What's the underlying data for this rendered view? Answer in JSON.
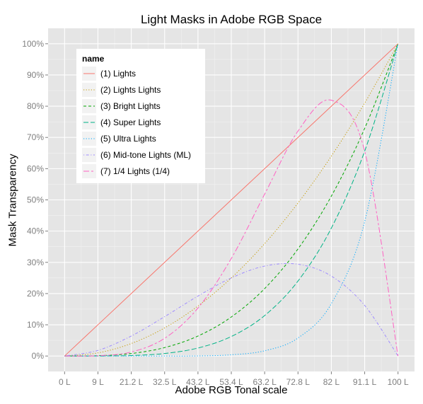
{
  "chart_data": {
    "type": "line",
    "title": "Light Masks in Adobe RGB Space",
    "xlabel": "Adobe RGB Tonal scale",
    "ylabel": "Mask Transparency",
    "x_tick_labels": [
      "0 L",
      "9 L",
      "21.2 L",
      "32.5 L",
      "43.2 L",
      "53.4 L",
      "63.2 L",
      "72.8 L",
      "82 L",
      "91.1 L",
      "100 L"
    ],
    "y_tick_labels": [
      "0%",
      "10%",
      "20%",
      "30%",
      "40%",
      "50%",
      "60%",
      "70%",
      "80%",
      "90%",
      "100%"
    ],
    "ylim": [
      0,
      1
    ],
    "xlim": [
      0,
      1
    ],
    "grid": true,
    "legend_title": "name",
    "legend_position": "top-left",
    "x": [
      0,
      0.1,
      0.2,
      0.3,
      0.4,
      0.5,
      0.6,
      0.7,
      0.8,
      0.9,
      1.0
    ],
    "series": [
      {
        "name": "(1) Lights",
        "color": "#F8766D",
        "dash": "solid",
        "values": [
          0,
          0.1,
          0.2,
          0.3,
          0.4,
          0.5,
          0.6,
          0.7,
          0.8,
          0.9,
          1.0
        ]
      },
      {
        "name": "(2) Lights Lights",
        "color": "#C49A00",
        "dash": "dotted",
        "values": [
          0,
          0.01,
          0.04,
          0.09,
          0.16,
          0.25,
          0.36,
          0.49,
          0.64,
          0.81,
          1.0
        ]
      },
      {
        "name": "(3) Bright Lights",
        "color": "#00A600",
        "dash": "dashed",
        "values": [
          0,
          0.001,
          0.008,
          0.027,
          0.064,
          0.125,
          0.216,
          0.343,
          0.512,
          0.729,
          1.0
        ]
      },
      {
        "name": "(4) Super Lights",
        "color": "#00B386",
        "dash": "longdash",
        "values": [
          0,
          0.0001,
          0.0016,
          0.0081,
          0.0256,
          0.0625,
          0.1296,
          0.2401,
          0.4096,
          0.6561,
          1.0
        ]
      },
      {
        "name": "(5) Ultra Lights",
        "color": "#00A9FF",
        "dash": "dotted",
        "values": [
          0,
          0,
          0,
          0,
          0.0003,
          0.0039,
          0.0168,
          0.0576,
          0.1678,
          0.4305,
          1.0
        ]
      },
      {
        "name": "(6) Mid-tone Lights (ML)",
        "color": "#9F8CFF",
        "dash": "dotdash",
        "values": [
          0,
          0.018,
          0.064,
          0.126,
          0.192,
          0.25,
          0.288,
          0.294,
          0.256,
          0.162,
          0
        ]
      },
      {
        "name": "(7) 1/4 Lights (1/4)",
        "color": "#FF61C3",
        "dash": "twodash",
        "values": [
          0,
          0.0009,
          0.0128,
          0.0567,
          0.1536,
          0.3125,
          0.5184,
          0.7203,
          0.8192,
          0.6561,
          0
        ]
      }
    ]
  }
}
